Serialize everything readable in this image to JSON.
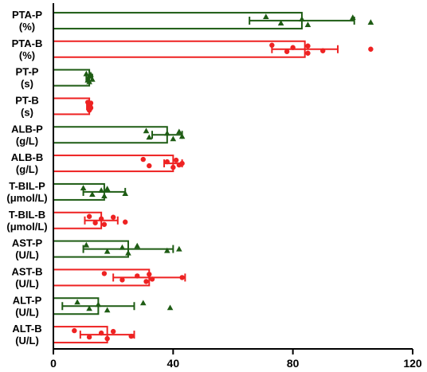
{
  "chart_data": {
    "type": "bar",
    "orientation": "horizontal",
    "title": "",
    "xlabel": "",
    "ylabel": "",
    "xlim": [
      0,
      120
    ],
    "xticks": [
      0,
      40,
      80,
      120
    ],
    "grid": false,
    "legend": "none",
    "colors": {
      "P": "#1e5c14",
      "B": "#ee2222"
    },
    "categories": [
      {
        "label": [
          "PTA-P",
          "(%)"
        ],
        "group": "P",
        "marker": "triangle",
        "mean": 83,
        "sd": 17.5,
        "points": [
          71,
          76,
          83,
          85,
          100,
          106
        ]
      },
      {
        "label": [
          "PTA-B",
          "(%)"
        ],
        "group": "B",
        "marker": "circle",
        "mean": 84,
        "sd": 11,
        "points": [
          73,
          78,
          80,
          85,
          85,
          90,
          106
        ]
      },
      {
        "label": [
          "PT-P",
          "(s)"
        ],
        "group": "P",
        "marker": "triangle",
        "mean": 12,
        "sd": 1.0,
        "points": [
          11,
          11.5,
          12,
          12,
          12.5,
          13
        ]
      },
      {
        "label": [
          "PT-B",
          "(s)"
        ],
        "group": "B",
        "marker": "circle",
        "mean": 12,
        "sd": 0.8,
        "points": [
          11.5,
          12,
          12,
          12,
          12.5,
          12.5
        ]
      },
      {
        "label": [
          "ALB-P",
          "(g/L)"
        ],
        "group": "P",
        "marker": "triangle",
        "mean": 38,
        "sd": 5,
        "points": [
          31,
          32,
          38,
          40,
          42,
          43
        ]
      },
      {
        "label": [
          "ALB-B",
          "(g/L)"
        ],
        "group": "B",
        "marker": "circle",
        "mean": 40,
        "sd": 3,
        "points": [
          30,
          32,
          38,
          40,
          41,
          42,
          43
        ]
      },
      {
        "label": [
          "T-BIL-P",
          "(μmol/L)"
        ],
        "group": "P",
        "marker": "triangle",
        "mean": 17,
        "sd": 7,
        "points": [
          10,
          13,
          16,
          17,
          18,
          24
        ]
      },
      {
        "label": [
          "T-BIL-B",
          "(μmol/L)"
        ],
        "group": "B",
        "marker": "circle",
        "mean": 16,
        "sd": 5.5,
        "points": [
          12,
          14,
          16,
          17,
          20,
          24
        ]
      },
      {
        "label": [
          "AST-P",
          "(U/L)"
        ],
        "group": "P",
        "marker": "triangle",
        "mean": 25,
        "sd": 15,
        "points": [
          11,
          18,
          23,
          25,
          28,
          38,
          42
        ]
      },
      {
        "label": [
          "AST-B",
          "(U/L)"
        ],
        "group": "B",
        "marker": "circle",
        "mean": 32,
        "sd": 12,
        "points": [
          17,
          23,
          28,
          31,
          32,
          33,
          43
        ]
      },
      {
        "label": [
          "ALT-P",
          "(U/L)"
        ],
        "group": "P",
        "marker": "triangle",
        "mean": 15,
        "sd": 12,
        "points": [
          8,
          12,
          15,
          18,
          30,
          39
        ]
      },
      {
        "label": [
          "ALT-B",
          "(U/L)"
        ],
        "group": "B",
        "marker": "circle",
        "mean": 18,
        "sd": 9,
        "points": [
          7,
          12,
          16,
          18,
          20,
          26
        ]
      }
    ]
  }
}
